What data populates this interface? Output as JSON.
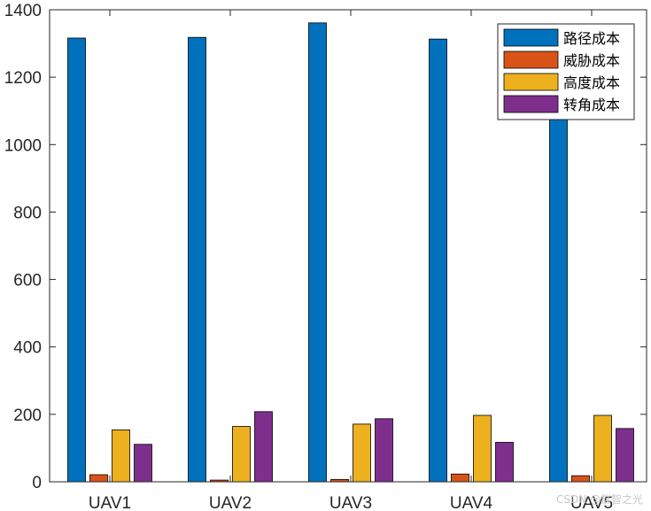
{
  "chart_data": {
    "type": "bar",
    "title": "",
    "xlabel": "",
    "ylabel": "",
    "categories": [
      "UAV1",
      "UAV2",
      "UAV3",
      "UAV4",
      "UAV5"
    ],
    "series": [
      {
        "name": "路径成本",
        "color": "#0072BD",
        "values": [
          1316,
          1318,
          1361,
          1313,
          1085
        ]
      },
      {
        "name": "威胁成本",
        "color": "#D95319",
        "values": [
          21,
          5,
          7,
          23,
          18
        ]
      },
      {
        "name": "高度成本",
        "color": "#EDB120",
        "values": [
          154,
          164,
          171,
          197,
          197
        ]
      },
      {
        "name": "转角成本",
        "color": "#7E2F8E",
        "values": [
          111,
          208,
          187,
          117,
          158
        ]
      }
    ],
    "ylim": [
      0,
      1400
    ],
    "yticks": [
      0,
      200,
      400,
      600,
      800,
      1000,
      1200,
      1400
    ],
    "grid": false,
    "legend_position": "top-right"
  },
  "watermark": "CSDN @群智之光"
}
